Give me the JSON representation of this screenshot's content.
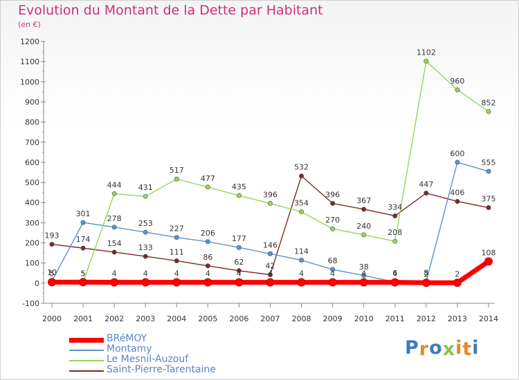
{
  "header": {
    "title": "Evolution du Montant de la Dette par Habitant",
    "subtitle": "(en €)"
  },
  "logo": {
    "letters": [
      "P",
      "r",
      "o",
      "x",
      "i",
      "t",
      "i"
    ],
    "colors": [
      "#3a7cc4",
      "#e8862d",
      "#3a7cc4",
      "#8bc34a",
      "#e8862d",
      "#e8862d",
      "#3a7cc4"
    ]
  },
  "chart_data": {
    "type": "line",
    "title": "Evolution du Montant de la Dette par Habitant",
    "ylabel": "(en €)",
    "x": [
      "2000",
      "2001",
      "2002",
      "2003",
      "2004",
      "2005",
      "2006",
      "2007",
      "2008",
      "2009",
      "2010",
      "2011",
      "2012",
      "2013",
      "2014"
    ],
    "ylim": [
      -100,
      1200
    ],
    "yticks": [
      "-100",
      "0",
      "100",
      "200",
      "300",
      "400",
      "500",
      "600",
      "700",
      "800",
      "900",
      "1000",
      "1100",
      "1200"
    ],
    "grid": false,
    "legend_position": "bottom-left",
    "series": [
      {
        "name": "Saint-Pierre-Tarentaine",
        "color": "#7a2a2a",
        "values": [
          193,
          174,
          154,
          133,
          111,
          86,
          62,
          42,
          532,
          396,
          367,
          334,
          447,
          406,
          375
        ],
        "labels": [
          "193",
          "174",
          "154",
          "133",
          "111",
          "86",
          "62",
          "42",
          "532",
          "396",
          "367",
          "334",
          "447",
          "406",
          "375"
        ]
      },
      {
        "name": "Montamy",
        "color": "#5b92cc",
        "values": [
          10,
          301,
          278,
          253,
          227,
          206,
          177,
          146,
          114,
          68,
          38,
          6,
          8,
          600,
          555
        ],
        "labels": [
          "10",
          "301",
          "278",
          "253",
          "227",
          "206",
          "177",
          "146",
          "114",
          "68",
          "38",
          "6",
          "8",
          "600",
          "555"
        ]
      },
      {
        "name": "Le Mesnil-Auzouf",
        "color": "#95d65a",
        "values": [
          5,
          5,
          444,
          431,
          517,
          477,
          435,
          396,
          354,
          270,
          240,
          208,
          1102,
          960,
          852
        ],
        "labels": [
          "5",
          "5",
          "444",
          "431",
          "517",
          "477",
          "435",
          "396",
          "354",
          "270",
          "240",
          "208",
          "1102",
          "960",
          "852"
        ]
      },
      {
        "name": "BRéMOY",
        "color": "#ff0000",
        "values": [
          5,
          5,
          4,
          4,
          4,
          4,
          4,
          4,
          4,
          4,
          4,
          4,
          2,
          2,
          108
        ],
        "labels": [
          "5",
          "5",
          "4",
          "4",
          "4",
          "4",
          "4",
          "4",
          "4",
          "4",
          "4",
          "4",
          "2",
          "2",
          "108"
        ]
      }
    ]
  },
  "legend": [
    {
      "name": "BRéMOY",
      "color": "#ff0000",
      "thickness": "thick"
    },
    {
      "name": "Montamy",
      "color": "#5b92cc",
      "thickness": "thin"
    },
    {
      "name": "Le Mesnil-Auzouf",
      "color": "#95d65a",
      "thickness": "thin"
    },
    {
      "name": "Saint-Pierre-Tarentaine",
      "color": "#7a2a2a",
      "thickness": "thin"
    }
  ]
}
